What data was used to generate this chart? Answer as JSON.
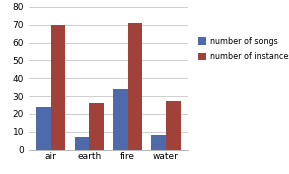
{
  "categories": [
    "air",
    "earth",
    "fire",
    "water"
  ],
  "songs": [
    24,
    7,
    34,
    8
  ],
  "instances": [
    70,
    26,
    71,
    27
  ],
  "bar_color_songs": "#4f6aab",
  "bar_color_instances": "#a0413a",
  "legend_songs": "number of songs",
  "legend_instances": "number of instances",
  "ylim": [
    0,
    80
  ],
  "yticks": [
    0,
    10,
    20,
    30,
    40,
    50,
    60,
    70,
    80
  ],
  "background_color": "#ffffff",
  "grid_color": "#bbbbbb"
}
